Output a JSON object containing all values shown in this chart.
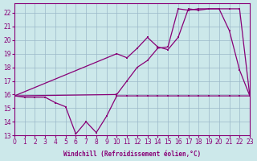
{
  "xlabel": "Windchill (Refroidissement éolien,°C)",
  "xlim": [
    0,
    23
  ],
  "ylim": [
    13,
    22.7
  ],
  "yticks": [
    13,
    14,
    15,
    16,
    17,
    18,
    19,
    20,
    21,
    22
  ],
  "xticks": [
    0,
    1,
    2,
    3,
    4,
    5,
    6,
    7,
    8,
    9,
    10,
    11,
    12,
    13,
    14,
    15,
    16,
    17,
    18,
    19,
    20,
    21,
    22,
    23
  ],
  "bg_color": "#cce8ea",
  "grid_color": "#9ab8c8",
  "line_color": "#880077",
  "line1_x": [
    0,
    1,
    2,
    3,
    4,
    5,
    6,
    7,
    8,
    9,
    10,
    11,
    12,
    13,
    14,
    15,
    16,
    17,
    18,
    19,
    20,
    21,
    22,
    23
  ],
  "line1_y": [
    15.9,
    15.8,
    15.8,
    15.8,
    15.4,
    15.1,
    13.1,
    14.0,
    13.2,
    14.4,
    15.9,
    15.9,
    15.9,
    15.9,
    15.9,
    15.9,
    15.9,
    15.9,
    15.9,
    15.9,
    15.9,
    15.9,
    15.9,
    15.9
  ],
  "line2_x": [
    0,
    10,
    11,
    12,
    13,
    14,
    15,
    16,
    17,
    18,
    19,
    20,
    21,
    22,
    23
  ],
  "line2_y": [
    15.9,
    19.0,
    18.7,
    19.4,
    20.2,
    19.5,
    19.3,
    20.2,
    22.3,
    22.2,
    22.3,
    22.3,
    20.7,
    17.8,
    15.9
  ],
  "line3_x": [
    0,
    10,
    11,
    12,
    13,
    14,
    15,
    16,
    17,
    18,
    19,
    20,
    21,
    22,
    23
  ],
  "line3_y": [
    15.9,
    16.0,
    17.0,
    18.0,
    18.5,
    19.4,
    19.5,
    22.3,
    22.2,
    22.3,
    22.3,
    22.3,
    22.3,
    22.3,
    15.9
  ]
}
